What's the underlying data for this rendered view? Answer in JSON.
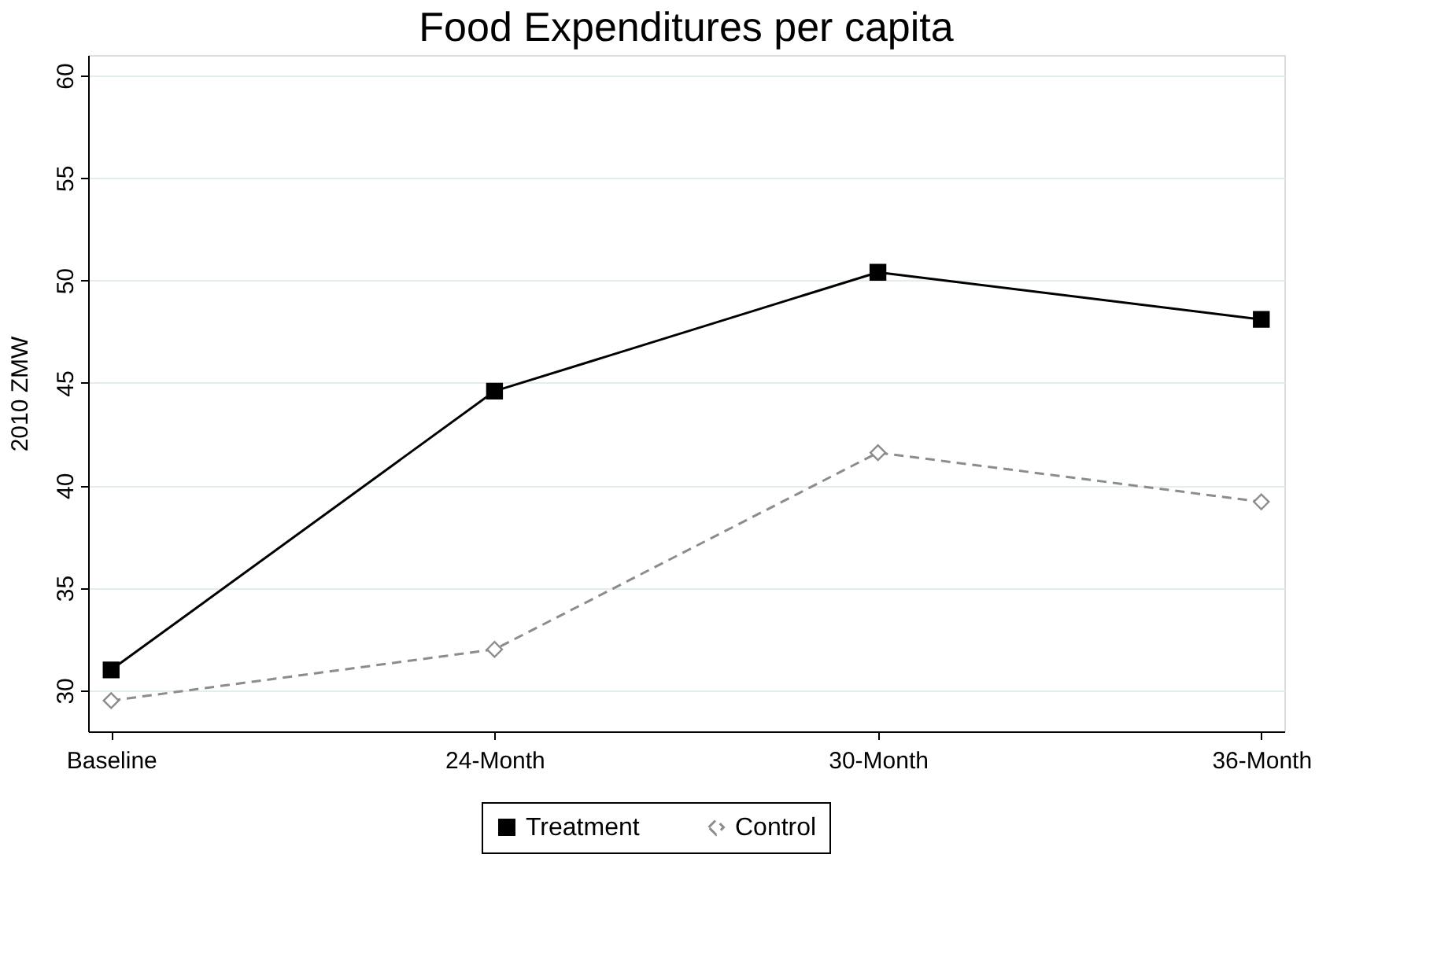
{
  "chart_data": {
    "type": "line",
    "title": "Food Expenditures per capita",
    "ylabel": "2010 ZMW",
    "categories": [
      "Baseline",
      "24-Month",
      "30-Month",
      "36-Month"
    ],
    "series": [
      {
        "name": "Treatment",
        "color": "#000000",
        "values": [
          31.0,
          44.6,
          50.4,
          48.1
        ],
        "marker": "square",
        "line_style": "solid"
      },
      {
        "name": "Control",
        "color": "#8c8c8c",
        "values": [
          29.5,
          32.0,
          41.6,
          39.2
        ],
        "marker": "diamond",
        "line_style": "dashed"
      }
    ],
    "ylim": [
      28,
      61
    ],
    "yticks": [
      30,
      35,
      40,
      45,
      50,
      55,
      60
    ],
    "grid": "y",
    "legend": "bottom"
  }
}
